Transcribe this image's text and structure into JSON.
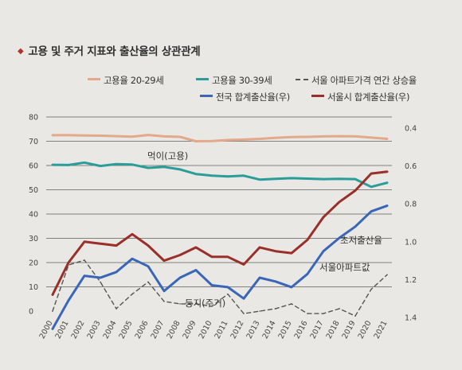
{
  "title": "고용 및 주거 지표와 출산율의 상관관계",
  "colors": {
    "emp2029": "#e3a98a",
    "emp3039": "#2a9d9a",
    "apt": "#555555",
    "tfr_nation": "#3a66b8",
    "tfr_seoul": "#9a2f2a",
    "grid": "#222222"
  },
  "chart_data": {
    "type": "line",
    "x": [
      "2000",
      "2001",
      "2002",
      "2003",
      "2004",
      "2005",
      "2006",
      "2007",
      "2008",
      "2009",
      "2010",
      "2011",
      "2012",
      "2013",
      "2014",
      "2015",
      "2016",
      "2017",
      "2018",
      "2019",
      "2020",
      "2021"
    ],
    "left_axis": {
      "ticks": [
        0,
        10,
        20,
        30,
        40,
        50,
        60,
        70,
        80
      ],
      "ylim": [
        0,
        80
      ]
    },
    "right_axis": {
      "ticks": [
        0.4,
        0.6,
        0.8,
        1.0,
        1.2,
        1.4
      ],
      "ylim": [
        1.4,
        0.4
      ],
      "inverted": true
    },
    "series": [
      {
        "name": "고용율 20-29세",
        "key": "emp2029",
        "axis": "left",
        "style": "solid",
        "values": [
          72.5,
          72.5,
          72.4,
          72.3,
          72.1,
          71.9,
          72.6,
          72.0,
          71.8,
          70.0,
          70.1,
          70.5,
          70.7,
          71.0,
          71.4,
          71.7,
          71.8,
          72.0,
          72.1,
          72.0,
          71.5,
          71.0
        ]
      },
      {
        "name": "고용율 30-39세",
        "key": "emp3039",
        "axis": "left",
        "style": "solid",
        "values": [
          60.3,
          60.2,
          61.2,
          59.8,
          60.6,
          60.4,
          59.0,
          59.4,
          58.4,
          56.5,
          55.8,
          55.5,
          55.8,
          54.2,
          54.5,
          54.8,
          54.6,
          54.4,
          54.5,
          54.4,
          51.2,
          52.9
        ]
      },
      {
        "name": "서울 아파트가격 연간 상승율",
        "key": "apt",
        "axis": "left",
        "style": "dashed",
        "values": [
          0,
          19,
          21,
          12,
          1,
          7,
          12,
          4,
          3,
          3,
          2,
          7,
          -1,
          0,
          1,
          3,
          -1,
          -1,
          1,
          -2,
          9,
          15
        ]
      },
      {
        "name": "전국 합계출산율(우)",
        "key": "tfr_nation",
        "axis": "right",
        "style": "solid",
        "values": [
          1.46,
          1.31,
          1.18,
          1.19,
          1.16,
          1.09,
          1.13,
          1.26,
          1.19,
          1.15,
          1.23,
          1.24,
          1.3,
          1.19,
          1.21,
          1.24,
          1.17,
          1.05,
          0.98,
          0.92,
          0.84,
          0.81
        ]
      },
      {
        "name": "서울시 합계출산율(우)",
        "key": "tfr_seoul",
        "axis": "right",
        "style": "solid",
        "values": [
          1.28,
          1.11,
          1.0,
          1.01,
          1.02,
          0.96,
          1.02,
          1.1,
          1.07,
          1.03,
          1.08,
          1.08,
          1.12,
          1.03,
          1.05,
          1.06,
          0.99,
          0.87,
          0.79,
          0.73,
          0.64,
          0.63
        ]
      }
    ],
    "annotations": [
      {
        "text": "먹이(고용)"
      },
      {
        "text": "초저출산율"
      },
      {
        "text": "서울아파트값"
      },
      {
        "text": "둥지(주거)"
      }
    ]
  }
}
